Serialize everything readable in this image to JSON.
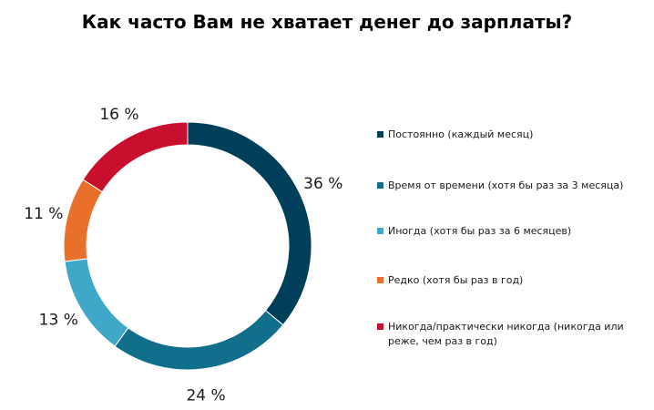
{
  "chart_data": {
    "type": "pie",
    "variant": "donut",
    "title": "Как часто Вам не хватает денег до зарплаты?",
    "legend_position": "right",
    "categories": [
      "Постоянно (каждый месяц)",
      "Время от времени (хотя бы раз за 3 месяца)",
      "Иногда (хотя бы раз за 6 месяцев)",
      "Редко (хотя бы раз в год)",
      "Никогда/практически никогда (никогда или реже, чем раз в год)"
    ],
    "values": [
      36,
      24,
      13,
      11,
      16
    ],
    "value_labels": [
      "36 %",
      "24 %",
      "13 %",
      "11 %",
      "16 %"
    ],
    "colors": [
      "#003F5A",
      "#126F8C",
      "#3FA8C8",
      "#E8702A",
      "#C8102E"
    ]
  }
}
